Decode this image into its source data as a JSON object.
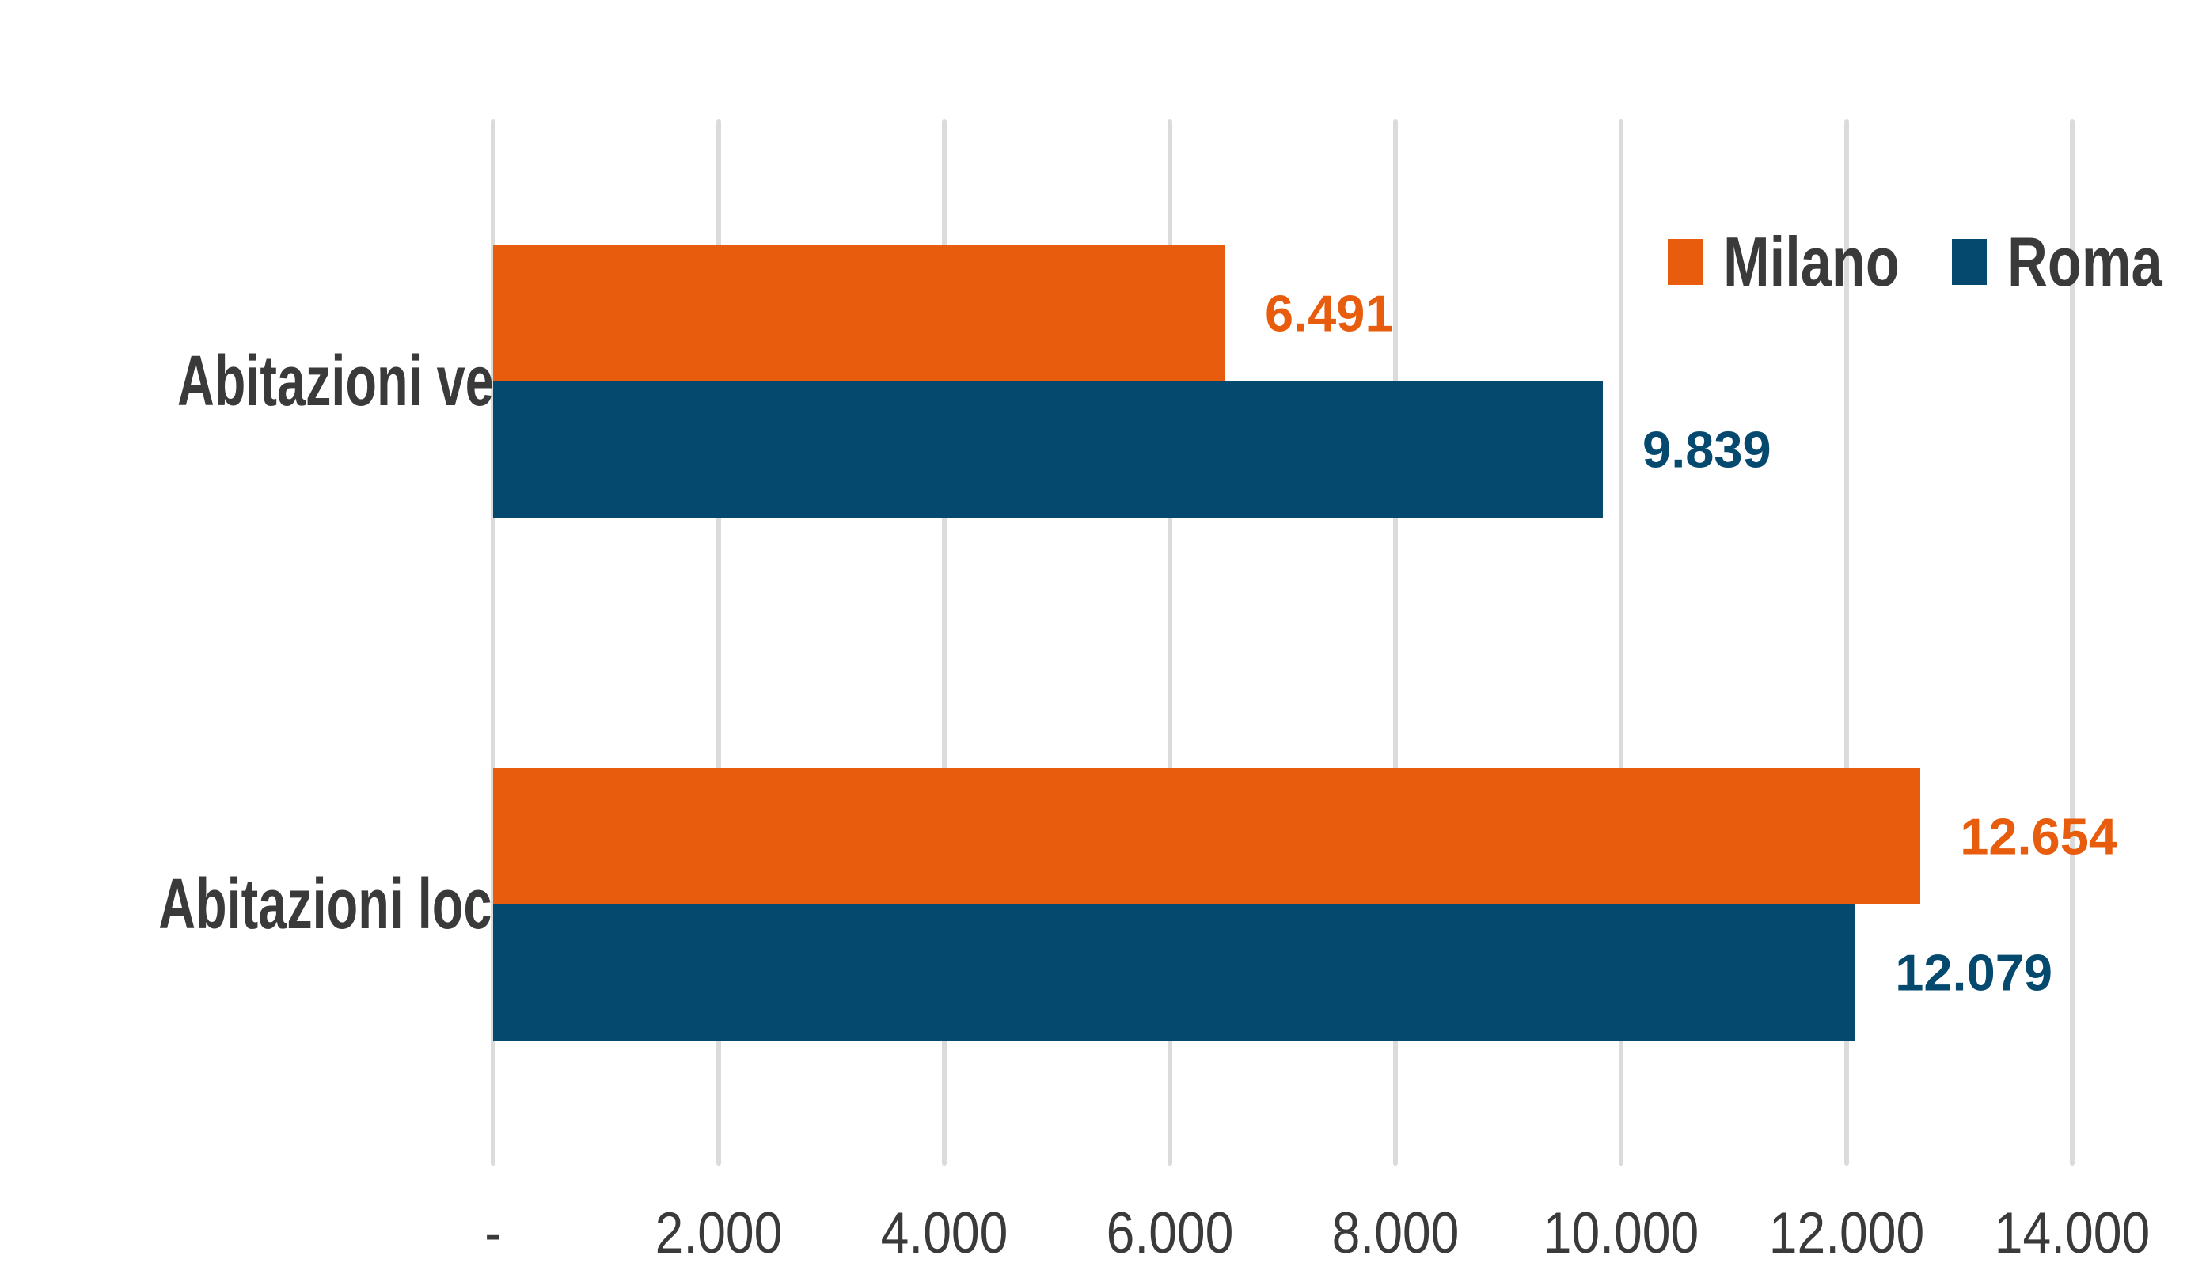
{
  "chart_data": {
    "type": "bar",
    "orientation": "horizontal",
    "title": "",
    "categories": [
      "Abitazioni vendute",
      "Abitazioni locate"
    ],
    "series": [
      {
        "name": "Milano",
        "color": "#E85C0E",
        "values": [
          6491,
          12654
        ],
        "labels": [
          "6.491",
          "12.654"
        ]
      },
      {
        "name": "Roma",
        "color": "#05496E",
        "values": [
          9839,
          12079
        ],
        "labels": [
          "9.839",
          "12.079"
        ]
      }
    ],
    "x_axis": {
      "min": 0,
      "max": 14000,
      "tick_interval": 2000,
      "tick_labels": [
        "-",
        "2.000",
        "4.000",
        "6.000",
        "8.000",
        "10.000",
        "12.000",
        "14.000"
      ]
    },
    "legend": {
      "position": "top-right",
      "entries": [
        "Milano",
        "Roma"
      ]
    },
    "grid": "vertical",
    "colors": {
      "gridline": "#DBDBDB",
      "text": "#3A3A3A",
      "background": "#FFFFFF"
    }
  }
}
